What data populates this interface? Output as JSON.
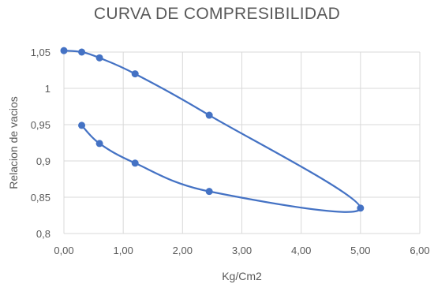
{
  "chart_data": {
    "type": "scatter",
    "title": "CURVA DE COMPRESIBILIDAD",
    "xlabel": "Kg/Cm2",
    "ylabel": "Relacion de vacios",
    "xlim": [
      0,
      6
    ],
    "ylim": [
      0.8,
      1.05
    ],
    "x_ticks": [
      "0,00",
      "1,00",
      "2,00",
      "3,00",
      "4,00",
      "5,00",
      "6,00"
    ],
    "y_ticks": [
      "0,8",
      "0,85",
      "0,9",
      "0,95",
      "1",
      "1,05"
    ],
    "grid": true,
    "smooth_lines": true,
    "series_color": "#4472c4",
    "series": [
      {
        "x": [
          0.0,
          0.3,
          0.6,
          1.2,
          2.45,
          5.0,
          2.45,
          1.2,
          0.6,
          0.3
        ],
        "y": [
          1.052,
          1.05,
          1.042,
          1.02,
          0.963,
          0.835,
          0.858,
          0.897,
          0.924,
          0.949
        ]
      }
    ]
  }
}
